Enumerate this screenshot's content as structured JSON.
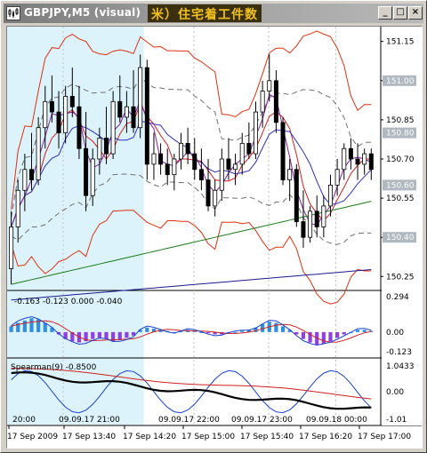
{
  "window": {
    "title": "GBPJPY,M5 (visual)",
    "title_extra": "米）住宅着工件数",
    "buttons": {
      "minimize": "_",
      "maximize": "□",
      "close": "×"
    }
  },
  "colors": {
    "highlight": "#dcf3fb",
    "bull": "#ffffff",
    "bear": "#000000",
    "bb_outer": "#e03010",
    "bb_inner": "#707070",
    "ma_green": "#1a7a1a",
    "ma_navy": "#1a1a90",
    "macd_hist_up": "#3090e0",
    "macd_hist_down": "#9040e0",
    "price_tag_bg": "#b0b8c0"
  },
  "main_chart": {
    "price_axis": [
      "151.15",
      "151.00",
      "150.85",
      "150.70",
      "150.55",
      "150.40",
      "150.25"
    ],
    "price_tags": [
      "151.00",
      "150.80",
      "150.60",
      "150.40"
    ],
    "bars": [
      [
        150.28,
        150.5,
        150.22,
        150.44
      ],
      [
        150.44,
        150.62,
        150.38,
        150.58
      ],
      [
        150.58,
        150.72,
        150.5,
        150.66
      ],
      [
        150.66,
        150.8,
        150.58,
        150.62
      ],
      [
        150.62,
        150.86,
        150.6,
        150.82
      ],
      [
        150.82,
        150.98,
        150.74,
        150.92
      ],
      [
        150.92,
        151.02,
        150.84,
        150.88
      ],
      [
        150.88,
        150.96,
        150.74,
        150.8
      ],
      [
        150.8,
        150.98,
        150.76,
        150.94
      ],
      [
        150.94,
        151.05,
        150.86,
        150.9
      ],
      [
        150.9,
        150.98,
        150.7,
        150.74
      ],
      [
        150.74,
        150.88,
        150.5,
        150.56
      ],
      [
        150.56,
        150.74,
        150.52,
        150.7
      ],
      [
        150.7,
        150.82,
        150.64,
        150.78
      ],
      [
        150.78,
        150.9,
        150.68,
        150.72
      ],
      [
        150.72,
        150.96,
        150.7,
        150.92
      ],
      [
        150.92,
        151.02,
        150.84,
        150.86
      ],
      [
        150.86,
        150.96,
        150.8,
        150.9
      ],
      [
        150.9,
        151.04,
        150.8,
        150.82
      ],
      [
        150.82,
        151.1,
        150.78,
        151.05
      ],
      [
        151.05,
        151.08,
        150.62,
        150.68
      ],
      [
        150.68,
        150.8,
        150.62,
        150.72
      ],
      [
        150.72,
        150.76,
        150.64,
        150.68
      ],
      [
        150.68,
        150.74,
        150.6,
        150.64
      ],
      [
        150.64,
        150.72,
        150.58,
        150.7
      ],
      [
        150.7,
        150.8,
        150.66,
        150.76
      ],
      [
        150.76,
        150.82,
        150.68,
        150.72
      ],
      [
        150.72,
        150.78,
        150.62,
        150.66
      ],
      [
        150.66,
        150.74,
        150.58,
        150.62
      ],
      [
        150.62,
        150.7,
        150.5,
        150.52
      ],
      [
        150.52,
        150.62,
        150.48,
        150.58
      ],
      [
        150.58,
        150.74,
        150.54,
        150.7
      ],
      [
        150.7,
        150.78,
        150.62,
        150.66
      ],
      [
        150.66,
        150.72,
        150.6,
        150.68
      ],
      [
        150.68,
        150.8,
        150.64,
        150.76
      ],
      [
        150.76,
        150.84,
        150.7,
        150.72
      ],
      [
        150.72,
        150.92,
        150.7,
        150.88
      ],
      [
        150.88,
        151.0,
        150.82,
        150.96
      ],
      [
        150.96,
        151.1,
        150.92,
        151.0
      ],
      [
        151.0,
        151.04,
        150.8,
        150.84
      ],
      [
        150.84,
        150.86,
        150.6,
        150.62
      ],
      [
        150.62,
        150.7,
        150.54,
        150.66
      ],
      [
        150.66,
        150.68,
        150.44,
        150.46
      ],
      [
        150.46,
        150.58,
        150.36,
        150.4
      ],
      [
        150.4,
        150.52,
        150.38,
        150.5
      ],
      [
        150.5,
        150.56,
        150.4,
        150.44
      ],
      [
        150.44,
        150.56,
        150.4,
        150.52
      ],
      [
        150.52,
        150.64,
        150.48,
        150.6
      ],
      [
        150.6,
        150.7,
        150.56,
        150.66
      ],
      [
        150.66,
        150.76,
        150.62,
        150.74
      ],
      [
        150.74,
        150.78,
        150.66,
        150.7
      ],
      [
        150.7,
        150.76,
        150.62,
        150.68
      ],
      [
        150.68,
        150.74,
        150.64,
        150.72
      ],
      [
        150.72,
        150.74,
        150.62,
        150.66
      ]
    ],
    "highlight_bars": 19
  },
  "macd": {
    "label": "-0.163 -0.123 0.000 -0.040",
    "axis": [
      "0.294",
      "0.00",
      "-0.123"
    ],
    "hist": [
      0.05,
      0.08,
      0.1,
      0.12,
      0.11,
      0.08,
      0.04,
      -0.02,
      -0.06,
      -0.08,
      -0.09,
      -0.08,
      -0.06,
      -0.05,
      -0.06,
      -0.08,
      -0.07,
      -0.05,
      -0.03,
      0.02,
      0.04,
      0.03,
      0.02,
      0.01,
      0.0,
      0.01,
      0.02,
      0.01,
      0.0,
      -0.01,
      -0.02,
      -0.02,
      -0.01,
      0.0,
      0.01,
      0.02,
      0.04,
      0.07,
      0.09,
      0.08,
      0.05,
      0.02,
      -0.02,
      -0.06,
      -0.09,
      -0.11,
      -0.1,
      -0.08,
      -0.05,
      -0.02,
      0.0,
      0.02,
      0.02,
      0.01
    ]
  },
  "spearman": {
    "label": "Spearman(9) -0.8500",
    "axis": [
      "1.0433",
      "0.00",
      "-1.01"
    ]
  },
  "time_axis": [
    "17 Sep 2009",
    "17 Sep 13:40",
    "17 Sep 14:20",
    "17 Sep 15:00",
    "17 Sep 15:40",
    "17 Sep 16:20",
    "17 Sep 17:00"
  ],
  "time_separators": [
    "20:00",
    "09.09.17 21:00",
    "09.09.17 22:00",
    "09.09.17 23:00",
    "09.09.18 00:00"
  ]
}
